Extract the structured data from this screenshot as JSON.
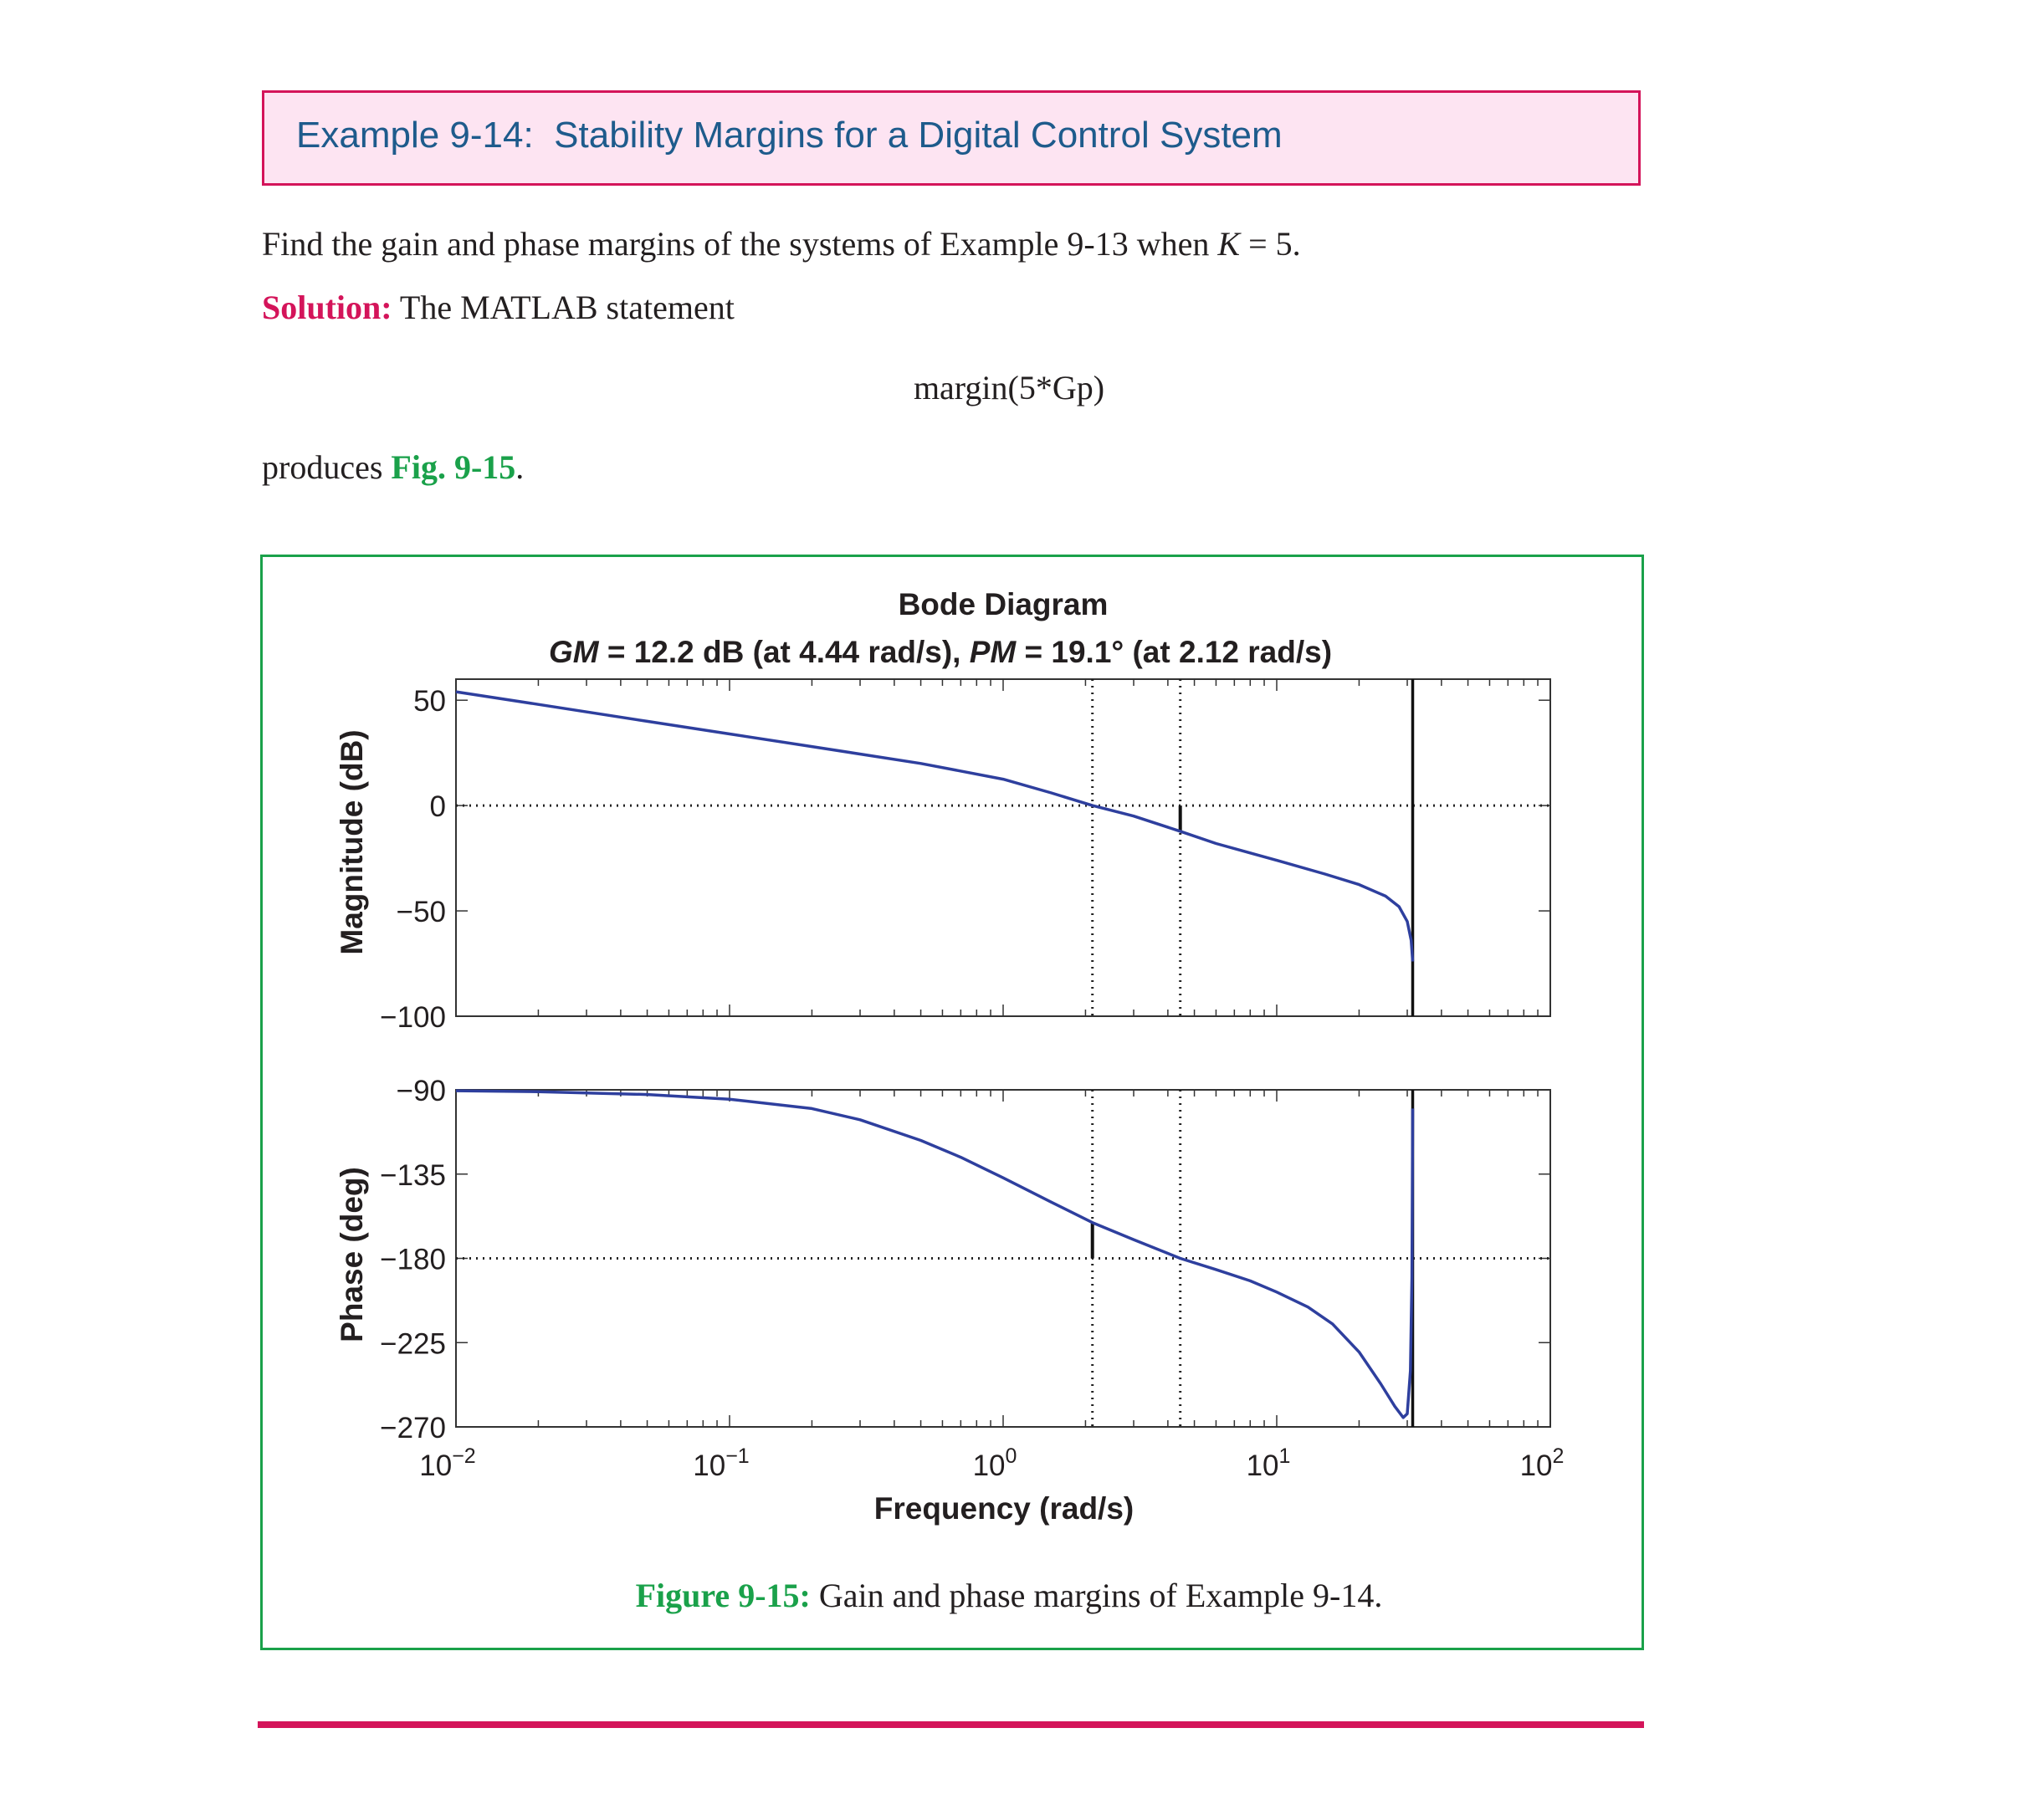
{
  "example_title": "Example 9-14:  Stability Margins for a Digital Control System",
  "problem": {
    "text_before": "Find the gain and phase margins of the systems of Example 9-13 when ",
    "var": "K",
    "text_after": " = 5."
  },
  "solution": {
    "label": "Solution:",
    "text": " The MATLAB statement"
  },
  "code": "margin(5*Gp)",
  "produces": {
    "text_before": "produces ",
    "fig_ref": "Fig. 9-15",
    "text_after": "."
  },
  "caption": {
    "label": "Figure 9-15:",
    "text": " Gain and phase margins of Example 9-14."
  },
  "chart_data": {
    "type": "line",
    "title": "Bode Diagram",
    "subtitle": {
      "gm_label": "GM",
      "gm_text": " = 12.2 dB (at 4.44 rad/s), ",
      "pm_label": "PM",
      "pm_text": " = 19.1° (at 2.12 rad/s)"
    },
    "xlabel": "Frequency (rad/s)",
    "xscale": "log",
    "xlim": [
      0.01,
      100
    ],
    "x_ticks": [
      {
        "base": "10",
        "exp": "−2",
        "value": 0.01
      },
      {
        "base": "10",
        "exp": "−1",
        "value": 0.1
      },
      {
        "base": "10",
        "exp": "0",
        "value": 1
      },
      {
        "base": "10",
        "exp": "1",
        "value": 10
      },
      {
        "base": "10",
        "exp": "2",
        "value": 100
      }
    ],
    "gain_margin": {
      "value_db": 12.2,
      "frequency": 4.44
    },
    "phase_margin": {
      "value_deg": 19.1,
      "frequency": 2.12
    },
    "nyquist_frequency": 31.4,
    "panels": [
      {
        "name": "magnitude",
        "ylabel": "Magnitude (dB)",
        "ylim": [
          -100,
          60
        ],
        "yticks": [
          {
            "value": 50,
            "label": "50"
          },
          {
            "value": 0,
            "label": "0"
          },
          {
            "value": -50,
            "label": "−50"
          },
          {
            "value": -100,
            "label": "−100"
          }
        ],
        "reference": 0,
        "series": {
          "x": [
            0.01,
            0.02,
            0.05,
            0.1,
            0.2,
            0.5,
            1,
            1.5,
            2.12,
            3,
            4.44,
            6,
            8,
            10,
            15,
            20,
            25,
            28,
            30,
            31,
            31.4
          ],
          "y": [
            54,
            48,
            40,
            34,
            28,
            20,
            12.5,
            6,
            0,
            -5,
            -12.2,
            -18,
            -22.5,
            -26,
            -32.5,
            -37.5,
            -43,
            -48,
            -55,
            -64,
            -74
          ]
        }
      },
      {
        "name": "phase",
        "ylabel": "Phase (deg)",
        "ylim": [
          -270,
          -90
        ],
        "yticks": [
          {
            "value": -90,
            "label": "−90"
          },
          {
            "value": -135,
            "label": "−135"
          },
          {
            "value": -180,
            "label": "−180"
          },
          {
            "value": -225,
            "label": "−225"
          },
          {
            "value": -270,
            "label": "−270"
          }
        ],
        "reference": -180,
        "series": {
          "x": [
            0.01,
            0.02,
            0.05,
            0.1,
            0.2,
            0.3,
            0.5,
            0.7,
            1,
            1.5,
            2.12,
            3,
            4.44,
            6,
            8,
            10,
            13,
            16,
            20,
            24,
            27,
            29,
            30,
            30.8,
            31.2,
            31.4
          ],
          "y": [
            -90.5,
            -91,
            -92.5,
            -95,
            -100,
            -106,
            -117,
            -126,
            -137,
            -150,
            -160.9,
            -170,
            -180,
            -186,
            -192,
            -198,
            -206,
            -215,
            -230,
            -247,
            -259,
            -265,
            -263,
            -240,
            -190,
            -100
          ]
        }
      }
    ]
  }
}
